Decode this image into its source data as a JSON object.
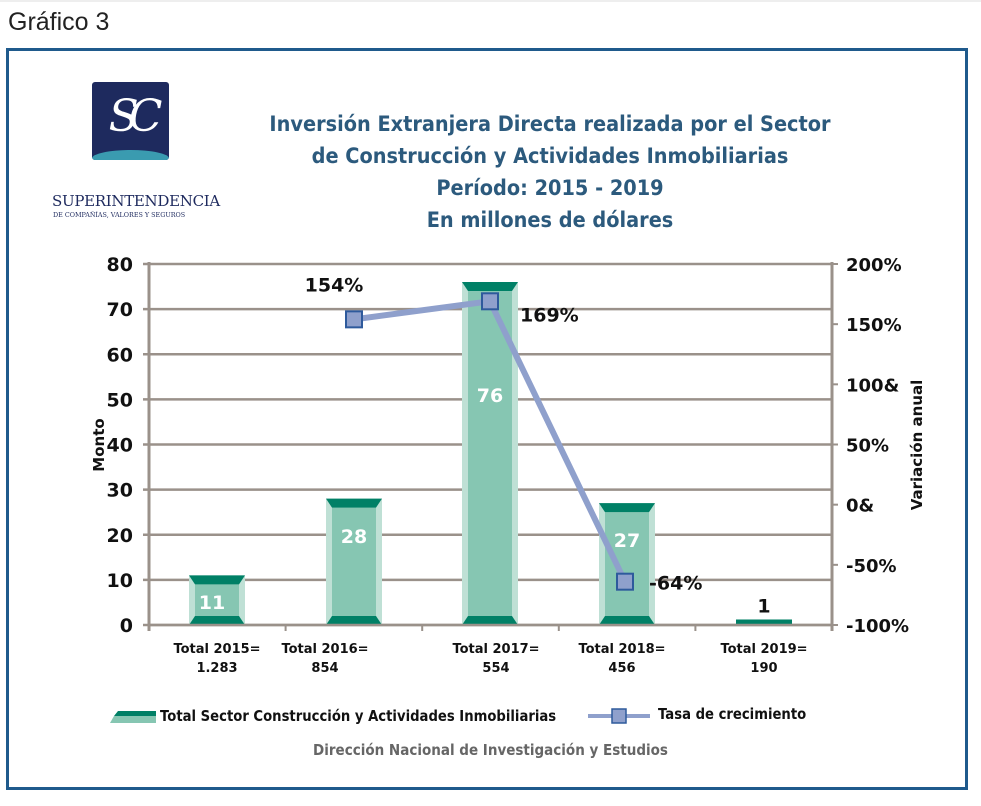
{
  "page": {
    "heading": "Gráfico 3",
    "logo": {
      "letters": "SC",
      "org_name": "Superintendencia",
      "org_subtitle": "DE COMPAÑÍAS, VALORES Y SEGUROS"
    },
    "footer": "Dirección Nacional de Investigación y Estudios",
    "colors": {
      "frame": "#1f5a8c",
      "title": "#2c5a7d",
      "bar_fill": "#86c6b2",
      "bar_cap": "#008066",
      "bar_edge": "#bfe0d5",
      "line": "#8fa0cc",
      "marker_fill": "#8fa0cc",
      "marker_stroke": "#2e5a9c",
      "grid": "#9a918a"
    }
  },
  "chart_data": {
    "type": "bar",
    "title": [
      "Inversión Extranjera Directa realizada por el Sector",
      "de Construcción y Actividades Inmobiliarias",
      "Período: 2015 - 2019",
      "En millones de dólares"
    ],
    "categories": [
      [
        "Total 2015=",
        "1.283"
      ],
      [
        "Total 2016=",
        "854"
      ],
      [
        "Total 2017=",
        "554"
      ],
      [
        "Total 2018=",
        "456"
      ],
      [
        "Total 2019=",
        "190"
      ]
    ],
    "ylabel": "Monto",
    "y2label": "Variación anual",
    "ylim": [
      0,
      80
    ],
    "y_ticks": [
      "0",
      "10",
      "20",
      "30",
      "40",
      "50",
      "60",
      "70",
      "80"
    ],
    "y2lim": [
      -100,
      200
    ],
    "y2_ticks": [
      "-100%",
      "-50%",
      "0&",
      "50%",
      "100&",
      "150%",
      "200%"
    ],
    "grid": true,
    "legend_position": "bottom",
    "series": [
      {
        "name": "Total Sector Construcción y Actividades Inmobiliarias",
        "kind": "bar",
        "axis": "left",
        "values": [
          11,
          28,
          76,
          27,
          1
        ],
        "labels": [
          "11",
          "28",
          "76",
          "27",
          "1"
        ]
      },
      {
        "name": "Tasa de crecimiento",
        "kind": "line",
        "axis": "right",
        "values": [
          null,
          154,
          169,
          -64,
          null
        ],
        "labels": [
          null,
          "154%",
          "169%",
          "-64%",
          null
        ]
      }
    ]
  }
}
